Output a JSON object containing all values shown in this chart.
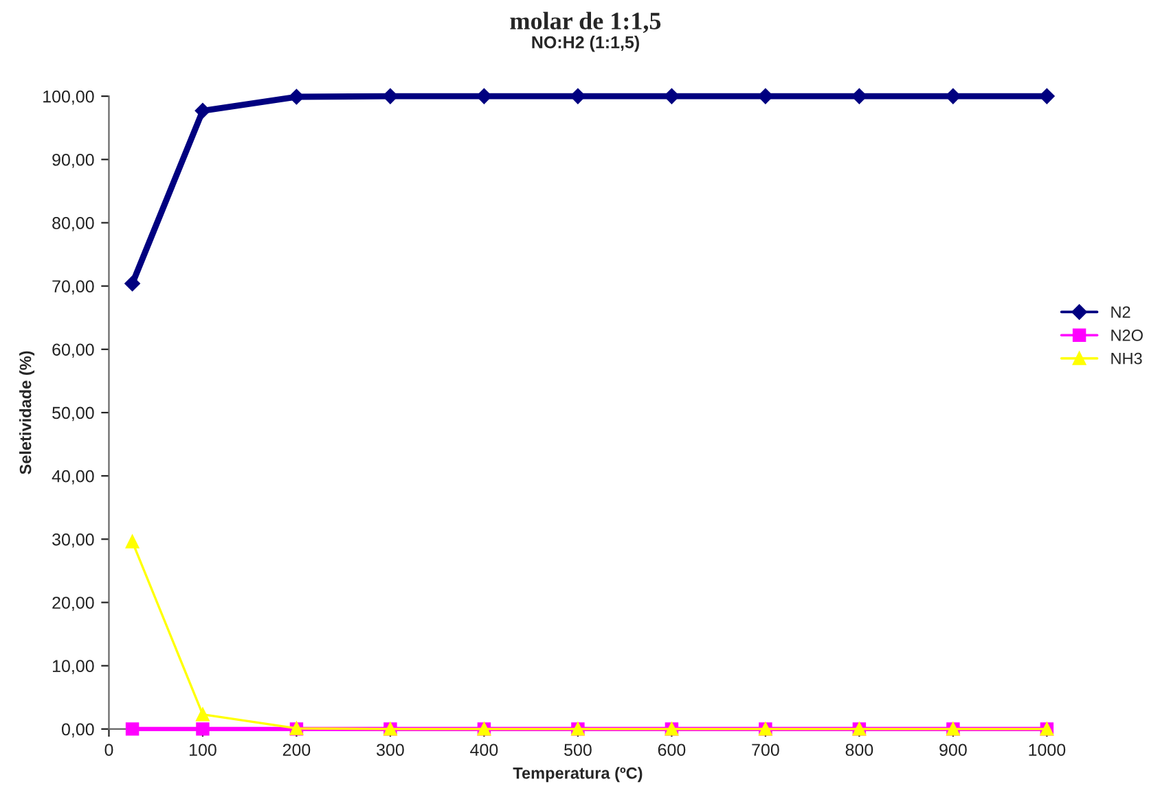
{
  "chart_data": {
    "type": "line",
    "title": "molar de 1:1,5",
    "subtitle": "NO:H2 (1:1,5)",
    "xlabel": "Temperatura (ºC)",
    "ylabel": "Seletividade (%)",
    "x": [
      25,
      100,
      200,
      300,
      400,
      500,
      600,
      700,
      800,
      900,
      1000
    ],
    "series": [
      {
        "name": "N2",
        "color": "#000080",
        "marker": "diamond",
        "values": [
          70.4,
          97.7,
          99.9,
          100,
          100,
          100,
          100,
          100,
          100,
          100,
          100
        ]
      },
      {
        "name": "N2O",
        "color": "#ff00ff",
        "marker": "square",
        "values": [
          0,
          0,
          0,
          0,
          0,
          0,
          0,
          0,
          0,
          0,
          0
        ]
      },
      {
        "name": "NH3",
        "color": "#ffff00",
        "marker": "triangle",
        "values": [
          29.6,
          2.3,
          0.1,
          0,
          0,
          0,
          0,
          0,
          0,
          0,
          0
        ]
      }
    ],
    "xlim": [
      0,
      1000
    ],
    "xticks": [
      0,
      100,
      200,
      300,
      400,
      500,
      600,
      700,
      800,
      900,
      1000
    ],
    "ylim": [
      0,
      100
    ],
    "yticks": [
      {
        "value": 0,
        "label": "0,00"
      },
      {
        "value": 10,
        "label": "10,00"
      },
      {
        "value": 20,
        "label": "20,00"
      },
      {
        "value": 30,
        "label": "30,00"
      },
      {
        "value": 40,
        "label": "40,00"
      },
      {
        "value": 50,
        "label": "50,00"
      },
      {
        "value": 60,
        "label": "60,00"
      },
      {
        "value": 70,
        "label": "70,00"
      },
      {
        "value": 80,
        "label": "80,00"
      },
      {
        "value": 90,
        "label": "90,00"
      },
      {
        "value": 100,
        "label": "100,00"
      }
    ],
    "grid": false,
    "legend": "right",
    "line_style": "solid"
  }
}
